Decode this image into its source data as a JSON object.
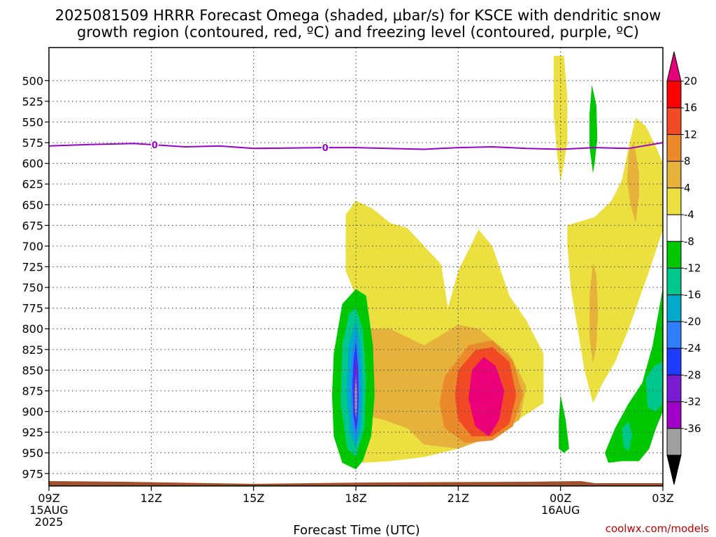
{
  "title_line1": "2025081509 HRRR Forecast Omega (shaded, μbar/s) for KSCE with dendritic snow",
  "title_line2": "growth region (contoured, red, ºC) and freezing level (contoured, purple, ºC)",
  "xlabel": "Forecast Time (UTC)",
  "credit": "coolwx.com/models",
  "chart_data": {
    "type": "heatmap",
    "y_axis": {
      "label": "",
      "ticks": [
        500,
        525,
        550,
        575,
        600,
        625,
        650,
        675,
        700,
        725,
        750,
        775,
        800,
        825,
        850,
        875,
        900,
        925,
        950,
        975
      ],
      "range": [
        460,
        990
      ],
      "inverted": true
    },
    "x_axis": {
      "ticks": [
        {
          "hour": 0,
          "label": "09Z",
          "sub1": "15AUG",
          "sub2": "2025"
        },
        {
          "hour": 3,
          "label": "12Z",
          "sub1": "",
          "sub2": ""
        },
        {
          "hour": 6,
          "label": "15Z",
          "sub1": "",
          "sub2": ""
        },
        {
          "hour": 9,
          "label": "18Z",
          "sub1": "",
          "sub2": ""
        },
        {
          "hour": 12,
          "label": "21Z",
          "sub1": "",
          "sub2": ""
        },
        {
          "hour": 15,
          "label": "00Z",
          "sub1": "16AUG",
          "sub2": ""
        },
        {
          "hour": 18,
          "label": "03Z",
          "sub1": "",
          "sub2": ""
        }
      ],
      "range": [
        0,
        18
      ]
    },
    "grid": true,
    "colorbar": {
      "levels": [
        "20",
        "16",
        "12",
        "8",
        "4",
        "-4",
        "-8",
        "-12",
        "-16",
        "-20",
        "-24",
        "-28",
        "-32",
        "-36"
      ],
      "colors": [
        "#ff0000",
        "#f24a24",
        "#ea8a2a",
        "#e6b23c",
        "#ece040",
        "#ffffff",
        "#00c800",
        "#00c88c",
        "#00aacc",
        "#2f7fff",
        "#1e3cff",
        "#7a1ad2",
        "#a000c8",
        "#a0a0a0"
      ],
      "top_arrow_color": "#e8007a",
      "bottom_arrow_color": "#000000"
    },
    "freezing_level": {
      "label": "0",
      "label_hours": [
        3.1,
        8.1
      ],
      "points": [
        [
          0,
          579
        ],
        [
          1,
          577.5
        ],
        [
          2.5,
          576
        ],
        [
          4,
          580
        ],
        [
          5,
          579
        ],
        [
          6,
          582
        ],
        [
          8,
          581
        ],
        [
          9,
          581
        ],
        [
          11,
          583
        ],
        [
          12,
          581
        ],
        [
          13,
          580
        ],
        [
          14,
          582
        ],
        [
          15,
          583
        ],
        [
          16,
          581
        ],
        [
          17,
          582
        ],
        [
          18,
          575
        ]
      ]
    },
    "terrain_color": "#a0522d",
    "omega_regions": [
      {
        "value": "4",
        "color": "#ece040",
        "points": [
          [
            8.7,
            662
          ],
          [
            9,
            645
          ],
          [
            9.5,
            655
          ],
          [
            10,
            672
          ],
          [
            10.5,
            678
          ],
          [
            11,
            700
          ],
          [
            11.5,
            722
          ],
          [
            11.7,
            775
          ],
          [
            12,
            730
          ],
          [
            12.6,
            680
          ],
          [
            13,
            700
          ],
          [
            13.5,
            760
          ],
          [
            14,
            790
          ],
          [
            14.5,
            830
          ],
          [
            14.5,
            890
          ],
          [
            13,
            930
          ],
          [
            12,
            945
          ],
          [
            11,
            955
          ],
          [
            10,
            960
          ],
          [
            9.2,
            962
          ],
          [
            8.8,
            930
          ],
          [
            9.0,
            900
          ],
          [
            9.3,
            860
          ],
          [
            9.4,
            820
          ],
          [
            9.3,
            790
          ],
          [
            9.0,
            760
          ],
          [
            8.7,
            730
          ]
        ]
      },
      {
        "value": "8",
        "color": "#e6b23c",
        "points": [
          [
            9.3,
            800
          ],
          [
            10,
            800
          ],
          [
            11,
            820
          ],
          [
            12,
            795
          ],
          [
            12.6,
            800
          ],
          [
            13.5,
            830
          ],
          [
            14,
            870
          ],
          [
            13.8,
            910
          ],
          [
            13,
            930
          ],
          [
            12,
            945
          ],
          [
            11,
            940
          ],
          [
            10.5,
            920
          ],
          [
            9.8,
            910
          ],
          [
            9.3,
            905
          ],
          [
            9.35,
            860
          ]
        ]
      },
      {
        "value": "12",
        "color": "#ea8a2a",
        "points": [
          [
            11.6,
            858
          ],
          [
            12.3,
            820
          ],
          [
            13,
            814
          ],
          [
            13.6,
            838
          ],
          [
            13.9,
            880
          ],
          [
            13.6,
            918
          ],
          [
            13,
            935
          ],
          [
            12.2,
            938
          ],
          [
            11.6,
            920
          ],
          [
            11.45,
            890
          ]
        ]
      },
      {
        "value": "16",
        "color": "#f24a24",
        "points": [
          [
            12.0,
            850
          ],
          [
            12.5,
            826
          ],
          [
            13,
            822
          ],
          [
            13.5,
            840
          ],
          [
            13.7,
            880
          ],
          [
            13.5,
            915
          ],
          [
            13,
            930
          ],
          [
            12.4,
            930
          ],
          [
            12.0,
            910
          ],
          [
            11.9,
            880
          ]
        ]
      },
      {
        "value": "20",
        "color": "#ec007a",
        "points": [
          [
            12.4,
            850
          ],
          [
            12.75,
            834
          ],
          [
            13.1,
            845
          ],
          [
            13.35,
            875
          ],
          [
            13.2,
            910
          ],
          [
            12.9,
            930
          ],
          [
            12.5,
            918
          ],
          [
            12.3,
            885
          ]
        ]
      },
      {
        "value": "-4",
        "color": "#00c800",
        "points": [
          [
            9.0,
            752
          ],
          [
            9.3,
            760
          ],
          [
            9.5,
            820
          ],
          [
            9.55,
            880
          ],
          [
            9.45,
            930
          ],
          [
            9.2,
            960
          ],
          [
            9.0,
            970
          ],
          [
            8.6,
            962
          ],
          [
            8.35,
            930
          ],
          [
            8.3,
            880
          ],
          [
            8.35,
            830
          ],
          [
            8.6,
            770
          ]
        ]
      },
      {
        "value": "-8",
        "color": "#00c88c",
        "points": [
          [
            9.0,
            775
          ],
          [
            9.2,
            800
          ],
          [
            9.3,
            860
          ],
          [
            9.25,
            920
          ],
          [
            9.0,
            955
          ],
          [
            8.75,
            945
          ],
          [
            8.55,
            890
          ],
          [
            8.6,
            820
          ],
          [
            8.8,
            782
          ]
        ]
      },
      {
        "value": "-12",
        "color": "#00aacc",
        "points": [
          [
            9.0,
            790
          ],
          [
            9.15,
            820
          ],
          [
            9.2,
            870
          ],
          [
            9.15,
            920
          ],
          [
            9.0,
            945
          ],
          [
            8.82,
            925
          ],
          [
            8.72,
            875
          ],
          [
            8.78,
            820
          ]
        ]
      },
      {
        "value": "-16",
        "color": "#2f7fff",
        "points": [
          [
            9.0,
            805
          ],
          [
            9.1,
            840
          ],
          [
            9.12,
            880
          ],
          [
            9.08,
            915
          ],
          [
            9.0,
            935
          ],
          [
            8.9,
            915
          ],
          [
            8.84,
            875
          ],
          [
            8.88,
            835
          ]
        ]
      },
      {
        "value": "-20",
        "color": "#1e3cff",
        "points": [
          [
            9.0,
            815
          ],
          [
            9.07,
            850
          ],
          [
            9.08,
            885
          ],
          [
            9.05,
            910
          ],
          [
            9.0,
            925
          ],
          [
            8.93,
            905
          ],
          [
            8.9,
            870
          ],
          [
            8.93,
            838
          ]
        ]
      },
      {
        "value": "-24",
        "color": "#7a1ad2",
        "points": [
          [
            9.0,
            830
          ],
          [
            9.05,
            855
          ],
          [
            9.05,
            885
          ],
          [
            9.02,
            905
          ],
          [
            9.0,
            915
          ],
          [
            8.96,
            900
          ],
          [
            8.95,
            870
          ],
          [
            8.97,
            848
          ]
        ]
      },
      {
        "value": "-32",
        "color": "#a0a0a0",
        "points": [
          [
            9.0,
            855
          ],
          [
            9.03,
            875
          ],
          [
            9.03,
            895
          ],
          [
            9.0,
            910
          ],
          [
            8.97,
            895
          ],
          [
            8.97,
            875
          ]
        ]
      },
      {
        "value": "4",
        "color": "#ece040",
        "points": [
          [
            14.8,
            470
          ],
          [
            15.1,
            470
          ],
          [
            15.2,
            520
          ],
          [
            15.2,
            575
          ],
          [
            15.1,
            600
          ],
          [
            15.0,
            622
          ],
          [
            14.9,
            590
          ],
          [
            14.8,
            540
          ]
        ]
      },
      {
        "value": "-4",
        "color": "#00c800",
        "points": [
          [
            15.92,
            505
          ],
          [
            16.05,
            530
          ],
          [
            16.08,
            570
          ],
          [
            16.0,
            600
          ],
          [
            15.95,
            612
          ],
          [
            15.85,
            580
          ],
          [
            15.85,
            540
          ]
        ]
      },
      {
        "value": "4",
        "color": "#ece040",
        "points": [
          [
            15.2,
            675
          ],
          [
            16,
            665
          ],
          [
            16.5,
            645
          ],
          [
            16.8,
            620
          ],
          [
            17.0,
            580
          ],
          [
            17.2,
            545
          ],
          [
            17.5,
            555
          ],
          [
            17.8,
            580
          ],
          [
            18,
            600
          ],
          [
            18,
            680
          ],
          [
            17.6,
            730
          ],
          [
            17.3,
            765
          ],
          [
            17.0,
            800
          ],
          [
            16.6,
            840
          ],
          [
            16.2,
            868
          ],
          [
            15.95,
            890
          ],
          [
            15.7,
            850
          ],
          [
            15.5,
            800
          ],
          [
            15.3,
            750
          ],
          [
            15.2,
            700
          ]
        ]
      },
      {
        "value": "8",
        "color": "#e6b23c",
        "points": [
          [
            17.0,
            585
          ],
          [
            17.15,
            575
          ],
          [
            17.3,
            610
          ],
          [
            17.3,
            640
          ],
          [
            17.2,
            672
          ],
          [
            17.05,
            650
          ],
          [
            16.95,
            620
          ]
        ]
      },
      {
        "value": "8",
        "color": "#e6b23c",
        "points": [
          [
            15.95,
            720
          ],
          [
            16.05,
            735
          ],
          [
            16.1,
            780
          ],
          [
            16.05,
            820
          ],
          [
            15.95,
            842
          ],
          [
            15.85,
            810
          ],
          [
            15.85,
            760
          ]
        ]
      },
      {
        "value": "-4",
        "color": "#00c800",
        "points": [
          [
            15.0,
            880
          ],
          [
            15.15,
            910
          ],
          [
            15.25,
            945
          ],
          [
            15.1,
            950
          ],
          [
            14.95,
            945
          ],
          [
            14.95,
            910
          ]
        ]
      },
      {
        "value": "-4",
        "color": "#00c800",
        "points": [
          [
            16.3,
            950
          ],
          [
            16.6,
            920
          ],
          [
            17.0,
            890
          ],
          [
            17.4,
            865
          ],
          [
            17.7,
            820
          ],
          [
            18,
            750
          ],
          [
            18,
            900
          ],
          [
            17.8,
            920
          ],
          [
            17.6,
            945
          ],
          [
            17.3,
            960
          ],
          [
            16.8,
            960
          ],
          [
            16.4,
            962
          ]
        ]
      },
      {
        "value": "-8",
        "color": "#00c88c",
        "points": [
          [
            17.5,
            860
          ],
          [
            17.75,
            845
          ],
          [
            18,
            840
          ],
          [
            18,
            890
          ],
          [
            17.8,
            900
          ],
          [
            17.55,
            895
          ]
        ]
      },
      {
        "value": "-8",
        "color": "#00c88c",
        "points": [
          [
            16.8,
            920
          ],
          [
            17.0,
            912
          ],
          [
            17.1,
            928
          ],
          [
            17.0,
            948
          ],
          [
            16.85,
            942
          ]
        ]
      }
    ]
  }
}
